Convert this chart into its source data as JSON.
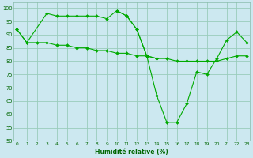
{
  "xlabel": "Humidité relative (%)",
  "background_color": "#cce8f0",
  "grid_color": "#99ccbb",
  "line_color": "#00aa00",
  "x": [
    0,
    1,
    2,
    3,
    4,
    5,
    6,
    7,
    8,
    9,
    10,
    11,
    12,
    13,
    14,
    15,
    16,
    17,
    18,
    19,
    20,
    21,
    22,
    23
  ],
  "line1_x": [
    0,
    1,
    3,
    4,
    5,
    6,
    7,
    8,
    9,
    10,
    11,
    12,
    13,
    14
  ],
  "line1_y": [
    92,
    87,
    98,
    97,
    97,
    97,
    97,
    97,
    96,
    99,
    97,
    92,
    82,
    81
  ],
  "line2_x": [
    0,
    1,
    2,
    3,
    4,
    5,
    6,
    7,
    8,
    9,
    10,
    11,
    12,
    13,
    14,
    15,
    16,
    17,
    18,
    19,
    20,
    21,
    22,
    23
  ],
  "line2_y": [
    92,
    87,
    87,
    87,
    86,
    86,
    85,
    85,
    84,
    84,
    83,
    83,
    82,
    82,
    81,
    81,
    80,
    80,
    80,
    80,
    80,
    81,
    82,
    82
  ],
  "line3_x": [
    10,
    11,
    12,
    13,
    14,
    15,
    16,
    17,
    18,
    19,
    20,
    21,
    22,
    23
  ],
  "line3_y": [
    99,
    97,
    92,
    82,
    67,
    57,
    57,
    64,
    76,
    75,
    81,
    88,
    91,
    87
  ],
  "ylim": [
    50,
    102
  ],
  "xlim": [
    -0.3,
    23.3
  ],
  "yticks": [
    50,
    55,
    60,
    65,
    70,
    75,
    80,
    85,
    90,
    95,
    100
  ],
  "xticks": [
    0,
    1,
    2,
    3,
    4,
    5,
    6,
    7,
    8,
    9,
    10,
    11,
    12,
    13,
    14,
    15,
    16,
    17,
    18,
    19,
    20,
    21,
    22,
    23
  ]
}
